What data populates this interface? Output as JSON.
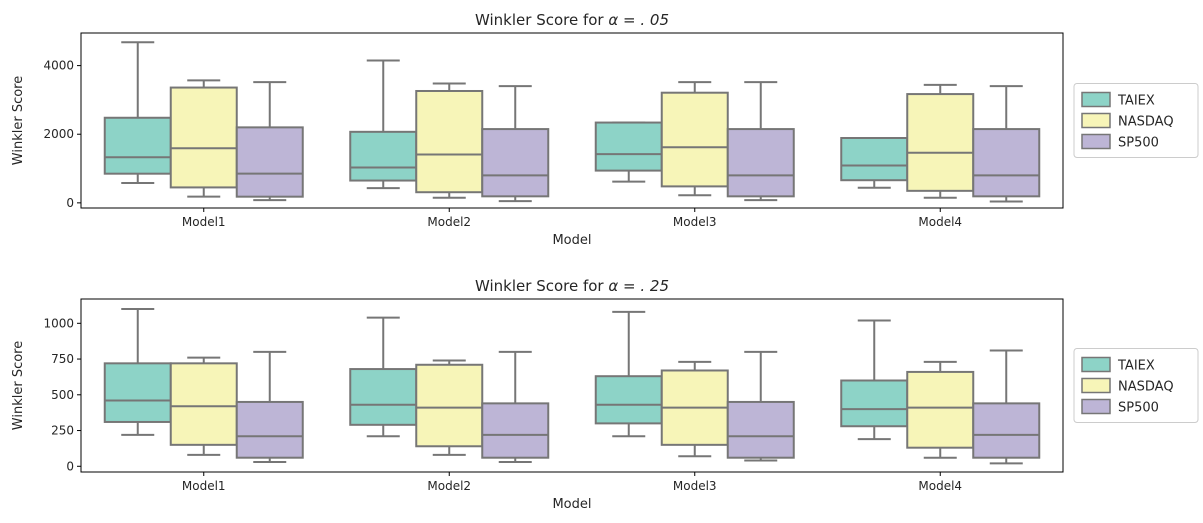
{
  "colors": {
    "TAIEX": "#8dd3c7",
    "NASDAQ": "#f7f5b8",
    "SP500": "#bdb5d6",
    "edge": "#767676"
  },
  "chart_data": [
    {
      "type": "box",
      "title": "Winkler Score for α = . 05",
      "title_prefix": "Winkler Score for ",
      "title_math": "α = . 05",
      "xlabel": "Model",
      "ylabel": "Winkler Score",
      "ylim": [
        -150,
        4950
      ],
      "yticks": [
        0,
        2000,
        4000
      ],
      "ytick_labels": [
        "0",
        "2000",
        "4000"
      ],
      "categories": [
        "Model1",
        "Model2",
        "Model3",
        "Model4"
      ],
      "legend_position": "outside-right",
      "series": [
        {
          "name": "TAIEX",
          "boxes": [
            {
              "whislo": 580,
              "q1": 850,
              "med": 1330,
              "q3": 2480,
              "whishi": 4680
            },
            {
              "whislo": 430,
              "q1": 650,
              "med": 1030,
              "q3": 2070,
              "whishi": 4150
            },
            {
              "whislo": 620,
              "q1": 940,
              "med": 1420,
              "q3": 2340,
              "whishi": 2340
            },
            {
              "whislo": 440,
              "q1": 660,
              "med": 1090,
              "q3": 1890,
              "whishi": 1890
            }
          ]
        },
        {
          "name": "NASDAQ",
          "boxes": [
            {
              "whislo": 180,
              "q1": 450,
              "med": 1590,
              "q3": 3360,
              "whishi": 3570
            },
            {
              "whislo": 150,
              "q1": 310,
              "med": 1410,
              "q3": 3260,
              "whishi": 3480
            },
            {
              "whislo": 220,
              "q1": 480,
              "med": 1620,
              "q3": 3210,
              "whishi": 3520
            },
            {
              "whislo": 150,
              "q1": 350,
              "med": 1460,
              "q3": 3170,
              "whishi": 3440
            }
          ]
        },
        {
          "name": "SP500",
          "boxes": [
            {
              "whislo": 80,
              "q1": 180,
              "med": 850,
              "q3": 2200,
              "whishi": 3520
            },
            {
              "whislo": 50,
              "q1": 190,
              "med": 800,
              "q3": 2150,
              "whishi": 3400
            },
            {
              "whislo": 80,
              "q1": 190,
              "med": 800,
              "q3": 2150,
              "whishi": 3520
            },
            {
              "whislo": 40,
              "q1": 190,
              "med": 800,
              "q3": 2150,
              "whishi": 3400
            }
          ]
        }
      ]
    },
    {
      "type": "box",
      "title": "Winkler Score for α = . 25",
      "title_prefix": "Winkler Score for ",
      "title_math": "α = . 25",
      "xlabel": "Model",
      "ylabel": "Winkler Score",
      "ylim": [
        -40,
        1170
      ],
      "yticks": [
        0,
        250,
        500,
        750,
        1000
      ],
      "ytick_labels": [
        "0",
        "250",
        "500",
        "750",
        "1000"
      ],
      "categories": [
        "Model1",
        "Model2",
        "Model3",
        "Model4"
      ],
      "legend_position": "outside-right",
      "series": [
        {
          "name": "TAIEX",
          "boxes": [
            {
              "whislo": 220,
              "q1": 310,
              "med": 460,
              "q3": 720,
              "whishi": 1100
            },
            {
              "whislo": 210,
              "q1": 290,
              "med": 430,
              "q3": 680,
              "whishi": 1040
            },
            {
              "whislo": 210,
              "q1": 300,
              "med": 430,
              "q3": 630,
              "whishi": 1080
            },
            {
              "whislo": 190,
              "q1": 280,
              "med": 400,
              "q3": 600,
              "whishi": 1020
            }
          ]
        },
        {
          "name": "NASDAQ",
          "boxes": [
            {
              "whislo": 80,
              "q1": 150,
              "med": 420,
              "q3": 720,
              "whishi": 760
            },
            {
              "whislo": 80,
              "q1": 140,
              "med": 410,
              "q3": 710,
              "whishi": 740
            },
            {
              "whislo": 70,
              "q1": 150,
              "med": 410,
              "q3": 670,
              "whishi": 730
            },
            {
              "whislo": 60,
              "q1": 130,
              "med": 410,
              "q3": 660,
              "whishi": 730
            }
          ]
        },
        {
          "name": "SP500",
          "boxes": [
            {
              "whislo": 30,
              "q1": 60,
              "med": 210,
              "q3": 450,
              "whishi": 800
            },
            {
              "whislo": 30,
              "q1": 60,
              "med": 220,
              "q3": 440,
              "whishi": 800
            },
            {
              "whislo": 40,
              "q1": 60,
              "med": 210,
              "q3": 450,
              "whishi": 800
            },
            {
              "whislo": 20,
              "q1": 60,
              "med": 220,
              "q3": 440,
              "whishi": 810
            }
          ]
        }
      ]
    }
  ]
}
